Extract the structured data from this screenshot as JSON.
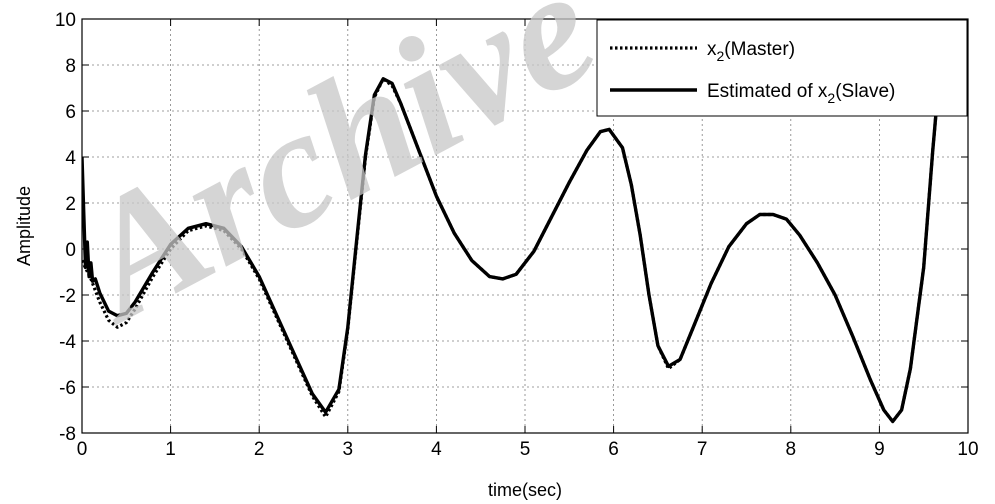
{
  "watermark": "Archive",
  "chart_data": {
    "type": "line",
    "xlabel": "time(sec)",
    "ylabel": "Amplitude",
    "xlim": [
      0,
      10
    ],
    "ylim": [
      -8,
      10
    ],
    "xticks": [
      0,
      1,
      2,
      3,
      4,
      5,
      6,
      7,
      8,
      9,
      10
    ],
    "yticks": [
      -8,
      -6,
      -4,
      -2,
      0,
      2,
      4,
      6,
      8,
      10
    ],
    "grid": true,
    "legend_position": "top-right",
    "series": [
      {
        "legend_base": "x",
        "legend_sub": "2",
        "legend_rest": "(Master)",
        "style": "dotted",
        "color": "#000000",
        "x": [
          0,
          0.05,
          0.1,
          0.2,
          0.3,
          0.4,
          0.5,
          0.6,
          0.8,
          1.0,
          1.2,
          1.4,
          1.6,
          1.8,
          2.0,
          2.2,
          2.4,
          2.6,
          2.75,
          2.9,
          3.0,
          3.1,
          3.2,
          3.3,
          3.4,
          3.5,
          3.6,
          3.8,
          4.0,
          4.2,
          4.4,
          4.6,
          4.75,
          4.9,
          5.1,
          5.3,
          5.5,
          5.7,
          5.85,
          5.95,
          6.1,
          6.2,
          6.3,
          6.4,
          6.5,
          6.62,
          6.75,
          6.9,
          7.1,
          7.3,
          7.5,
          7.65,
          7.8,
          7.95,
          8.1,
          8.3,
          8.5,
          8.7,
          8.9,
          9.05,
          9.15,
          9.25,
          9.35,
          9.5,
          9.6,
          9.65
        ],
        "y": [
          -0.5,
          -0.9,
          -1.3,
          -2.3,
          -3.1,
          -3.4,
          -3.2,
          -2.6,
          -1.2,
          0.0,
          0.8,
          1.0,
          0.8,
          0.0,
          -1.3,
          -3.0,
          -4.7,
          -6.4,
          -7.3,
          -6.2,
          -3.5,
          0.3,
          4.0,
          6.6,
          7.4,
          7.1,
          6.3,
          4.3,
          2.3,
          0.7,
          -0.5,
          -1.2,
          -1.3,
          -1.1,
          -0.1,
          1.4,
          2.9,
          4.3,
          5.1,
          5.2,
          4.4,
          2.8,
          0.6,
          -2.0,
          -4.2,
          -5.2,
          -4.8,
          -3.4,
          -1.5,
          0.1,
          1.1,
          1.5,
          1.5,
          1.3,
          0.6,
          -0.6,
          -2.0,
          -3.8,
          -5.7,
          -7.0,
          -7.5,
          -7.0,
          -5.2,
          -0.8,
          4.2,
          6.4
        ]
      },
      {
        "legend_base": "Estimated  of x",
        "legend_sub": "2",
        "legend_rest": "(Slave)",
        "style": "solid",
        "color": "#000000",
        "x": [
          0,
          0.02,
          0.04,
          0.06,
          0.08,
          0.1,
          0.12,
          0.15,
          0.2,
          0.3,
          0.4,
          0.5,
          0.6,
          0.8,
          1.0,
          1.2,
          1.4,
          1.6,
          1.8,
          2.0,
          2.2,
          2.4,
          2.6,
          2.75,
          2.9,
          3.0,
          3.1,
          3.2,
          3.3,
          3.4,
          3.5,
          3.6,
          3.8,
          4.0,
          4.2,
          4.4,
          4.6,
          4.75,
          4.9,
          5.1,
          5.3,
          5.5,
          5.7,
          5.85,
          5.95,
          6.1,
          6.2,
          6.3,
          6.4,
          6.5,
          6.62,
          6.75,
          6.9,
          7.1,
          7.3,
          7.5,
          7.65,
          7.8,
          7.95,
          8.1,
          8.3,
          8.5,
          8.7,
          8.9,
          9.05,
          9.15,
          9.25,
          9.35,
          9.5,
          9.6,
          9.65
        ],
        "y": [
          4.0,
          1.5,
          -0.8,
          0.3,
          -1.2,
          -0.6,
          -1.4,
          -1.3,
          -1.9,
          -2.7,
          -2.9,
          -2.8,
          -2.3,
          -1.0,
          0.2,
          0.9,
          1.1,
          0.9,
          0.1,
          -1.2,
          -2.9,
          -4.6,
          -6.3,
          -7.1,
          -6.1,
          -3.4,
          0.4,
          4.1,
          6.7,
          7.4,
          7.2,
          6.3,
          4.3,
          2.3,
          0.7,
          -0.5,
          -1.2,
          -1.3,
          -1.1,
          -0.1,
          1.4,
          2.9,
          4.3,
          5.1,
          5.2,
          4.4,
          2.8,
          0.6,
          -2.0,
          -4.2,
          -5.1,
          -4.8,
          -3.4,
          -1.5,
          0.1,
          1.1,
          1.5,
          1.5,
          1.3,
          0.6,
          -0.6,
          -2.0,
          -3.8,
          -5.7,
          -7.0,
          -7.5,
          -7.0,
          -5.2,
          -0.8,
          4.2,
          6.4
        ]
      }
    ]
  }
}
